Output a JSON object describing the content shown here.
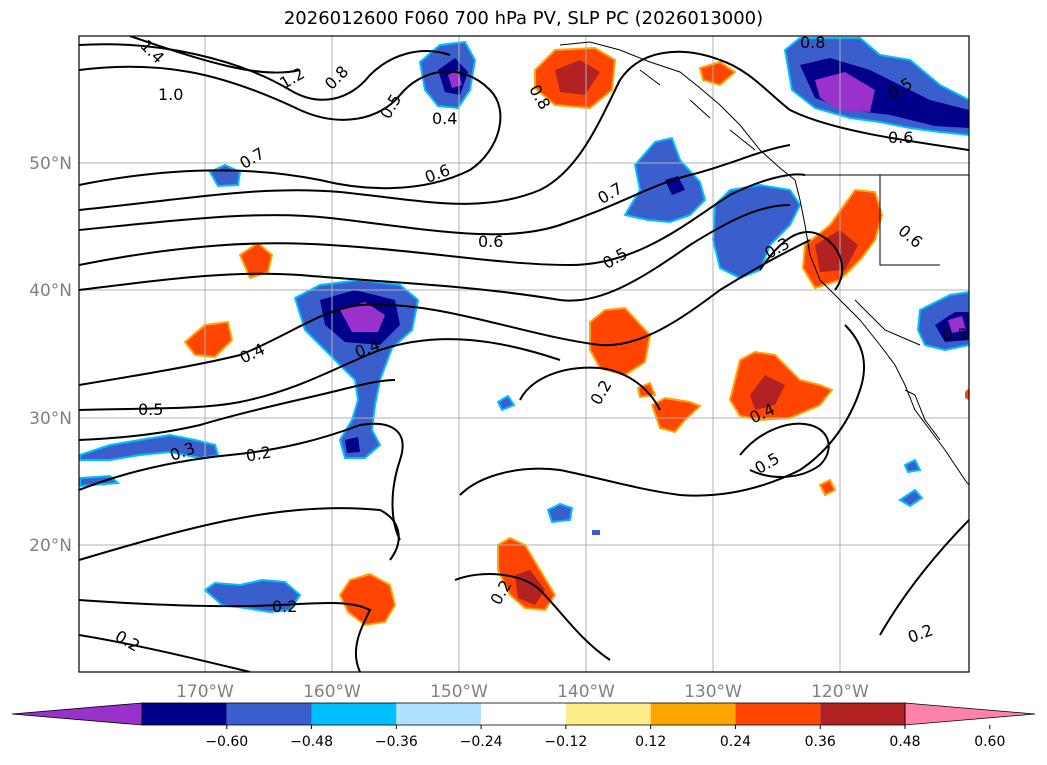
{
  "title": "2026012600 F060 700 hPa PV, SLP PC (2026013000)",
  "lat_labels": [
    "50°N",
    "40°N",
    "30°N",
    "20°N"
  ],
  "lon_labels": [
    "170°W",
    "160°W",
    "150°W",
    "140°W",
    "130°W",
    "120°W"
  ],
  "colorbar": {
    "colors": [
      "#9932cc",
      "#00008b",
      "#3a5fcd",
      "#00bfff",
      "#b0e2ff",
      "#ffffff",
      "#ffec8b",
      "#ffa500",
      "#ff4500",
      "#b22222",
      "#ff82ab"
    ],
    "ticks": [
      "−0.60",
      "−0.48",
      "−0.36",
      "−0.24",
      "−0.12",
      "0.12",
      "0.24",
      "0.36",
      "0.48",
      "0.60"
    ]
  },
  "contour_labels": [
    "1.4",
    "1.2",
    "0.8",
    "1.0",
    "0.5",
    "0.4",
    "0.8",
    "0.7",
    "0.6",
    "0.7",
    "0.6",
    "0.5",
    "0.8",
    "0.5",
    "0.6",
    "0.3",
    "0.6",
    "0.4",
    "0.4",
    "0.5",
    "0.3",
    "0.2",
    "0.2",
    "0.4",
    "0.5",
    "0.2",
    "0.2",
    "0.2",
    "0.2",
    "0.5"
  ]
}
